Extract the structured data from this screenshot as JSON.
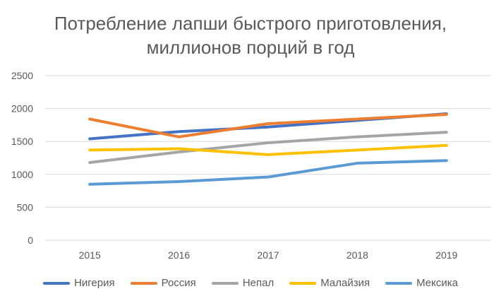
{
  "chart_data": {
    "type": "line",
    "title_lines": [
      "Потребление лапши быстрого приготовления,",
      "миллионов порций в год"
    ],
    "categories": [
      "2015",
      "2016",
      "2017",
      "2018",
      "2019"
    ],
    "ylim": [
      0,
      2500
    ],
    "yticks": [
      0,
      500,
      1000,
      1500,
      2000,
      2500
    ],
    "grid": true,
    "legend_position": "bottom",
    "series": [
      {
        "name": "Нигерия",
        "color": "#4472C4",
        "values": [
          1540,
          1650,
          1720,
          1820,
          1920
        ]
      },
      {
        "name": "Россия",
        "color": "#ED7D31",
        "values": [
          1840,
          1570,
          1770,
          1840,
          1910
        ]
      },
      {
        "name": "Непал",
        "color": "#A5A5A5",
        "values": [
          1180,
          1340,
          1480,
          1570,
          1640
        ]
      },
      {
        "name": "Малайзия",
        "color": "#FFC000",
        "values": [
          1370,
          1390,
          1300,
          1370,
          1440
        ]
      },
      {
        "name": "Мексика",
        "color": "#5B9BD5",
        "values": [
          850,
          890,
          960,
          1170,
          1210
        ]
      }
    ]
  }
}
